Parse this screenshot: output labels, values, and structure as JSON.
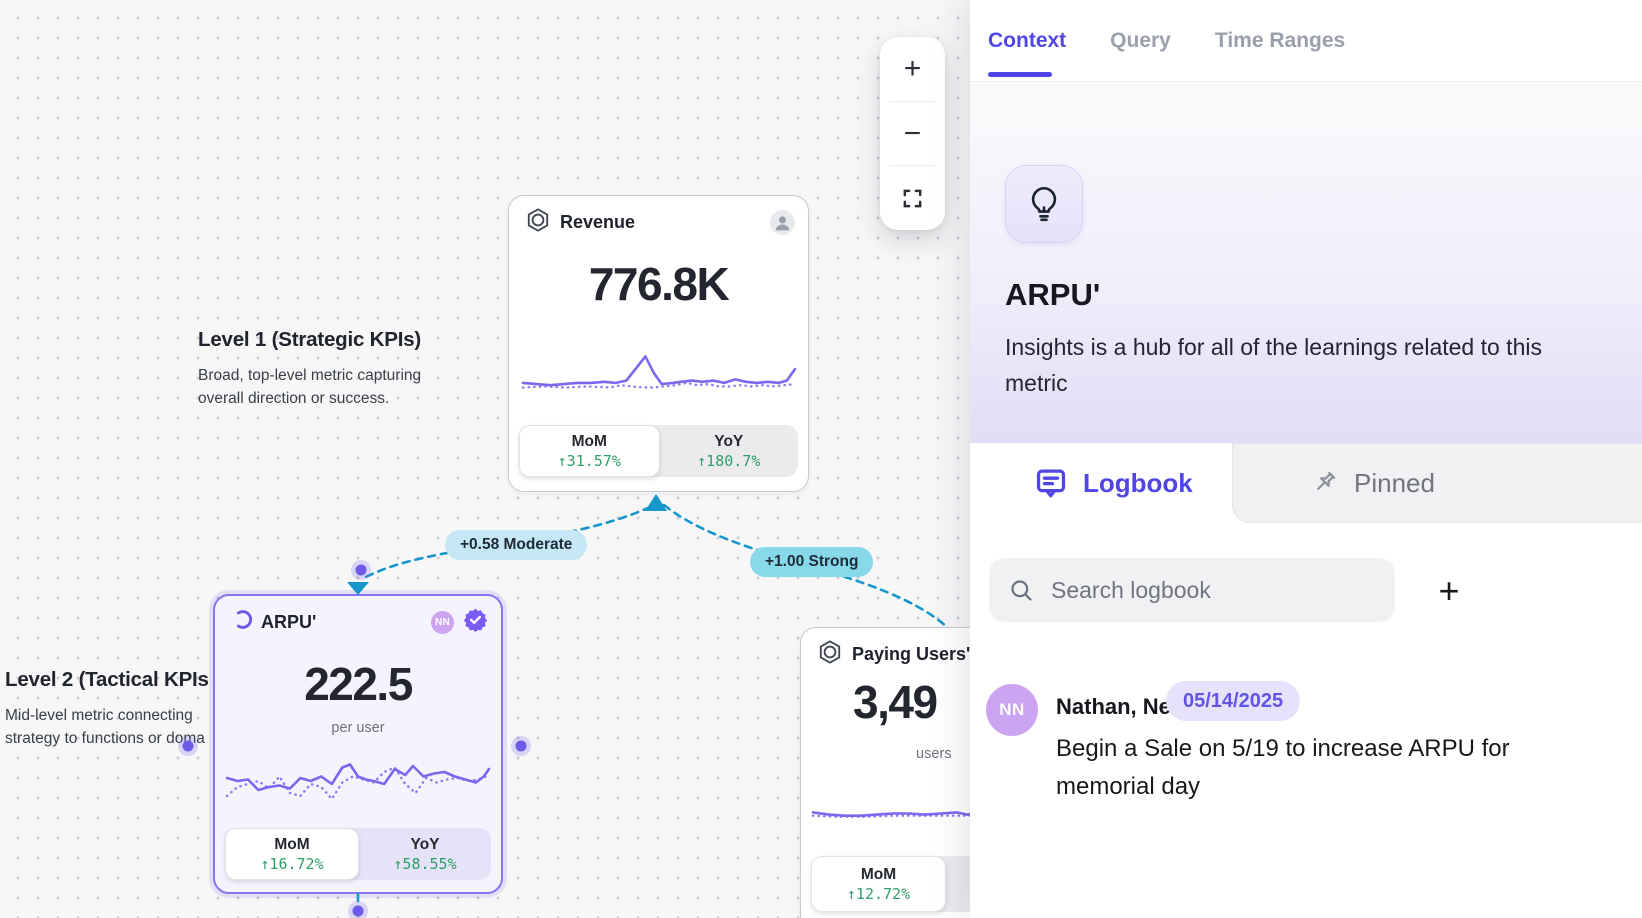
{
  "colors": {
    "accent_purple": "#4f46e5",
    "sparkline_purple": "#7b68ee",
    "positive_green": "#2f9e68",
    "edge_blue": "#1796cc",
    "moderate_pill": "#c6e7f6",
    "strong_pill": "#87d8e8",
    "selected_card_border": "#8677ec",
    "avatar_purple": "#cda4f1",
    "date_badge_bg": "#e7e2fb"
  },
  "canvas": {
    "zoom_toolbar": {
      "zoom_in_label": "+",
      "zoom_out_label": "−",
      "fit_icon": "fit-view-icon"
    },
    "annotations": [
      {
        "title": "Level 1 (Strategic KPIs)",
        "line1": "Broad, top-level metric capturing",
        "line2": "overall direction or success."
      },
      {
        "title": "Level 2 (Tactical KPIs",
        "line1": "Mid-level metric connecting",
        "line2": "strategy to functions or doma"
      }
    ],
    "edges": [
      {
        "label": "+0.58 Moderate"
      },
      {
        "label": "+1.00 Strong"
      }
    ],
    "cards": {
      "revenue": {
        "icon": "hexagon-icon",
        "title": "Revenue",
        "value": "776.8K",
        "mom_label": "MoM",
        "mom_value": "↑31.57%",
        "yoy_label": "YoY",
        "yoy_value": "↑180.7%"
      },
      "arpu": {
        "icon": "crescent-icon",
        "title": "ARPU'",
        "avatar_initials": "NN",
        "value": "222.5",
        "unit": "per user",
        "mom_label": "MoM",
        "mom_value": "↑16.72%",
        "yoy_label": "YoY",
        "yoy_value": "↑58.55%"
      },
      "paying_users": {
        "icon": "hexagon-icon",
        "title": "Paying Users'",
        "value": "3,49",
        "unit": "users",
        "mom_label": "MoM",
        "mom_value": "↑12.72%"
      }
    }
  },
  "panel": {
    "tabs": [
      {
        "label": "Context",
        "active": true
      },
      {
        "label": "Query",
        "active": false
      },
      {
        "label": "Time Ranges",
        "active": false
      }
    ],
    "header": {
      "icon": "lightbulb-icon",
      "title": "ARPU'",
      "description": "Insights is a hub for all of the learnings related to this metric"
    },
    "subtabs": {
      "logbook": "Logbook",
      "pinned": "Pinned"
    },
    "search": {
      "placeholder": "Search logbook",
      "add_label": "+"
    },
    "log_entries": [
      {
        "initials": "NN",
        "author": "Nathan, Neha",
        "date": "05/14/2025",
        "text": "Begin a Sale on 5/19 to increase ARPU for memorial day"
      }
    ]
  },
  "chart_data": [
    {
      "type": "line",
      "name": "Revenue sparkline",
      "series": {
        "solid": [
          [
            0,
            26
          ],
          [
            5,
            27
          ],
          [
            10,
            28
          ],
          [
            15,
            27
          ],
          [
            20,
            26
          ],
          [
            25,
            26
          ],
          [
            30,
            25
          ],
          [
            34,
            26
          ],
          [
            38,
            24
          ],
          [
            42,
            12
          ],
          [
            45,
            3
          ],
          [
            48,
            17
          ],
          [
            51,
            27
          ],
          [
            55,
            26
          ],
          [
            58,
            25
          ],
          [
            62,
            24
          ],
          [
            66,
            25
          ],
          [
            70,
            24
          ],
          [
            74,
            26
          ],
          [
            78,
            23
          ],
          [
            82,
            25
          ],
          [
            86,
            26
          ],
          [
            90,
            25
          ],
          [
            94,
            26
          ],
          [
            97,
            24
          ],
          [
            100,
            14
          ]
        ],
        "dotted": [
          [
            0,
            30
          ],
          [
            8,
            29
          ],
          [
            16,
            30
          ],
          [
            24,
            29
          ],
          [
            32,
            30
          ],
          [
            36,
            28
          ],
          [
            40,
            29
          ],
          [
            44,
            30
          ],
          [
            48,
            30
          ],
          [
            52,
            29
          ],
          [
            56,
            28
          ],
          [
            60,
            26
          ],
          [
            64,
            28
          ],
          [
            68,
            27
          ],
          [
            72,
            29
          ],
          [
            76,
            29
          ],
          [
            80,
            28
          ],
          [
            84,
            29
          ],
          [
            88,
            28
          ],
          [
            92,
            29
          ],
          [
            96,
            28
          ],
          [
            100,
            27
          ]
        ]
      }
    },
    {
      "type": "line",
      "name": "ARPU sparkline",
      "series": {
        "solid": [
          [
            0,
            14
          ],
          [
            4,
            16
          ],
          [
            8,
            15
          ],
          [
            12,
            22
          ],
          [
            16,
            20
          ],
          [
            20,
            19
          ],
          [
            24,
            21
          ],
          [
            28,
            14
          ],
          [
            32,
            16
          ],
          [
            36,
            13
          ],
          [
            40,
            18
          ],
          [
            44,
            7
          ],
          [
            47,
            5
          ],
          [
            50,
            13
          ],
          [
            53,
            15
          ],
          [
            56,
            16
          ],
          [
            60,
            18
          ],
          [
            64,
            8
          ],
          [
            68,
            12
          ],
          [
            71,
            6
          ],
          [
            75,
            13
          ],
          [
            79,
            11
          ],
          [
            83,
            10
          ],
          [
            87,
            13
          ],
          [
            91,
            15
          ],
          [
            95,
            17
          ],
          [
            98,
            13
          ],
          [
            100,
            8
          ]
        ],
        "dotted": [
          [
            0,
            26
          ],
          [
            4,
            20
          ],
          [
            8,
            18
          ],
          [
            12,
            16
          ],
          [
            16,
            21
          ],
          [
            20,
            13
          ],
          [
            24,
            24
          ],
          [
            28,
            26
          ],
          [
            32,
            18
          ],
          [
            36,
            20
          ],
          [
            40,
            28
          ],
          [
            44,
            17
          ],
          [
            48,
            13
          ],
          [
            52,
            15
          ],
          [
            56,
            17
          ],
          [
            60,
            10
          ],
          [
            64,
            7
          ],
          [
            68,
            18
          ],
          [
            72,
            24
          ],
          [
            76,
            14
          ],
          [
            80,
            17
          ],
          [
            84,
            15
          ],
          [
            88,
            14
          ],
          [
            92,
            16
          ],
          [
            96,
            15
          ],
          [
            100,
            12
          ]
        ]
      }
    },
    {
      "type": "line",
      "name": "Paying Users sparkline",
      "series": {
        "solid": [
          [
            0,
            24
          ],
          [
            6,
            26
          ],
          [
            12,
            27
          ],
          [
            18,
            27
          ],
          [
            24,
            26
          ],
          [
            30,
            25
          ],
          [
            36,
            25
          ],
          [
            42,
            26
          ],
          [
            48,
            25
          ],
          [
            54,
            24
          ],
          [
            58,
            26
          ],
          [
            62,
            24
          ],
          [
            66,
            22
          ],
          [
            70,
            12
          ],
          [
            73,
            5
          ],
          [
            76,
            10
          ],
          [
            79,
            20
          ],
          [
            83,
            26
          ],
          [
            88,
            27
          ],
          [
            93,
            26
          ],
          [
            100,
            26
          ]
        ],
        "dotted": [
          [
            0,
            27
          ],
          [
            10,
            28
          ],
          [
            20,
            28
          ],
          [
            30,
            27
          ],
          [
            40,
            27
          ],
          [
            50,
            27
          ],
          [
            60,
            27
          ],
          [
            68,
            27
          ],
          [
            74,
            28
          ],
          [
            80,
            28
          ],
          [
            86,
            28
          ],
          [
            93,
            28
          ],
          [
            100,
            28
          ]
        ]
      }
    }
  ]
}
